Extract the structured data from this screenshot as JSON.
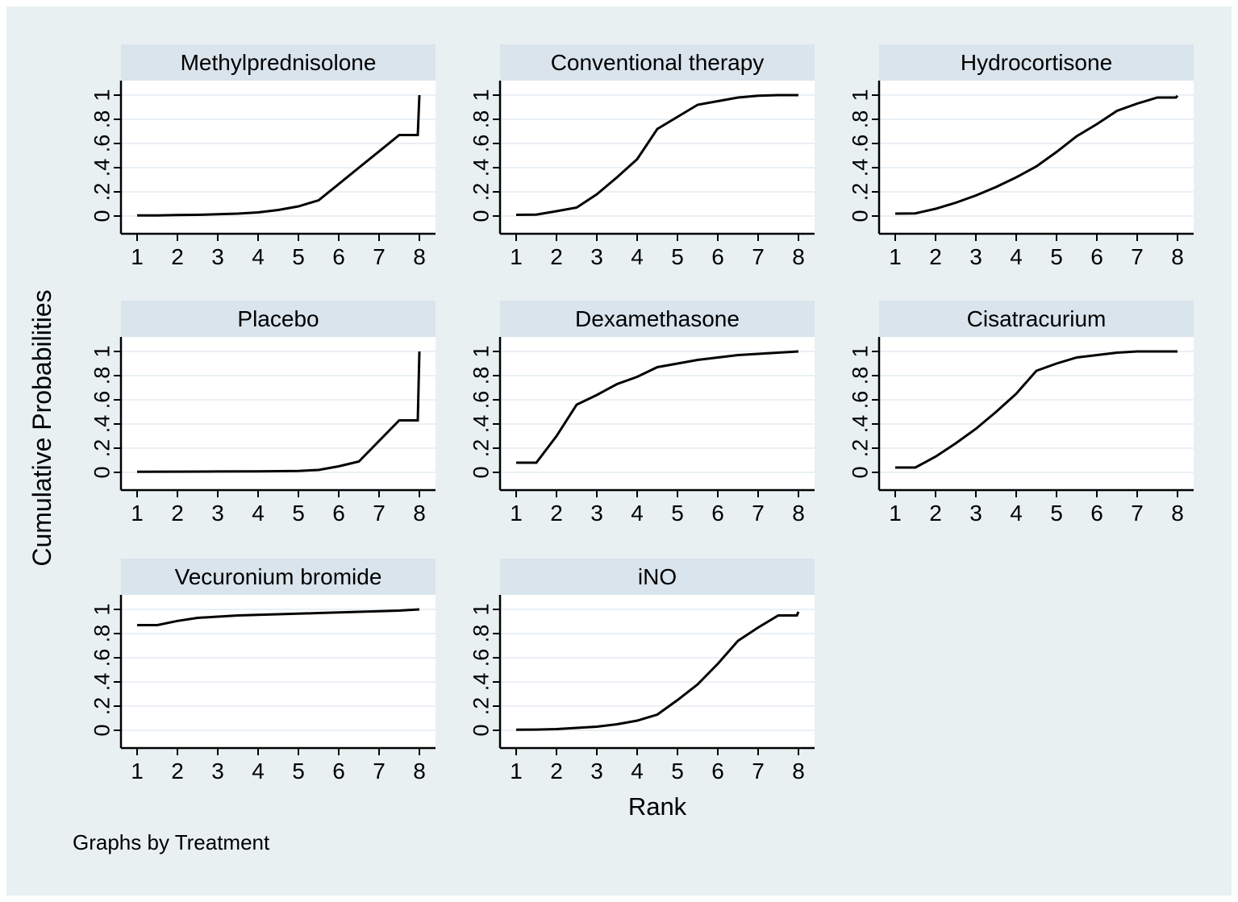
{
  "colors": {
    "page_border": "#ffffff",
    "figure_background": "#e8f0f2",
    "panel_strip": "#d9e4ec",
    "plot_background": "#ffffff",
    "gridline": "#e3ecf2",
    "axis": "#000000",
    "series_line": "#000000"
  },
  "chart_data": {
    "type": "line",
    "layout": "small-multiples, 3 columns, graphs by treatment",
    "by_note": "Graphs by Treatment",
    "x": {
      "label": "Rank",
      "ticks": [
        "1",
        "2",
        "3",
        "4",
        "5",
        "6",
        "7",
        "8"
      ],
      "tick_values": [
        1,
        2,
        3,
        4,
        5,
        6,
        7,
        8
      ],
      "range": [
        1,
        8
      ]
    },
    "y": {
      "label": "Cumulative Probabilities",
      "ticks": [
        "0",
        ".2",
        ".4",
        ".6",
        ".8",
        "1"
      ],
      "tick_values": [
        0,
        0.2,
        0.4,
        0.6,
        0.8,
        1
      ],
      "range": [
        0,
        1
      ],
      "grid": true
    },
    "panels": [
      {
        "title": "Methylprednisolone",
        "points": [
          [
            1,
            0.005
          ],
          [
            1.5,
            0.005
          ],
          [
            2,
            0.008
          ],
          [
            2.5,
            0.01
          ],
          [
            3,
            0.015
          ],
          [
            3.5,
            0.02
          ],
          [
            4,
            0.03
          ],
          [
            4.5,
            0.05
          ],
          [
            5,
            0.08
          ],
          [
            5.5,
            0.13
          ],
          [
            6,
            0.265
          ],
          [
            6.5,
            0.4
          ],
          [
            7,
            0.535
          ],
          [
            7.5,
            0.67
          ],
          [
            7.96,
            0.67
          ],
          [
            8,
            1.0
          ]
        ]
      },
      {
        "title": "Conventional therapy",
        "points": [
          [
            1,
            0.01
          ],
          [
            1.5,
            0.012
          ],
          [
            2,
            0.04
          ],
          [
            2.5,
            0.07
          ],
          [
            3,
            0.18
          ],
          [
            3.5,
            0.32
          ],
          [
            4,
            0.47
          ],
          [
            4.5,
            0.72
          ],
          [
            5,
            0.82
          ],
          [
            5.5,
            0.92
          ],
          [
            6,
            0.95
          ],
          [
            6.5,
            0.98
          ],
          [
            7,
            0.995
          ],
          [
            7.5,
            1.0
          ],
          [
            8,
            1.0
          ]
        ]
      },
      {
        "title": "Hydrocortisone",
        "points": [
          [
            1,
            0.02
          ],
          [
            1.5,
            0.022
          ],
          [
            2,
            0.06
          ],
          [
            2.5,
            0.11
          ],
          [
            3,
            0.17
          ],
          [
            3.5,
            0.24
          ],
          [
            4,
            0.32
          ],
          [
            4.5,
            0.41
          ],
          [
            5,
            0.53
          ],
          [
            5.5,
            0.66
          ],
          [
            6,
            0.76
          ],
          [
            6.5,
            0.87
          ],
          [
            7,
            0.93
          ],
          [
            7.5,
            0.98
          ],
          [
            7.96,
            0.98
          ],
          [
            8,
            0.995
          ]
        ]
      },
      {
        "title": "Placebo",
        "points": [
          [
            1,
            0.005
          ],
          [
            2,
            0.006
          ],
          [
            3,
            0.007
          ],
          [
            4,
            0.008
          ],
          [
            5,
            0.012
          ],
          [
            5.5,
            0.02
          ],
          [
            6,
            0.05
          ],
          [
            6.5,
            0.09
          ],
          [
            7,
            0.26
          ],
          [
            7.5,
            0.43
          ],
          [
            7.96,
            0.43
          ],
          [
            8,
            1.0
          ]
        ]
      },
      {
        "title": "Dexamethasone",
        "points": [
          [
            1,
            0.08
          ],
          [
            1.5,
            0.08
          ],
          [
            2,
            0.3
          ],
          [
            2.5,
            0.56
          ],
          [
            3,
            0.64
          ],
          [
            3.5,
            0.73
          ],
          [
            4,
            0.79
          ],
          [
            4.5,
            0.87
          ],
          [
            5,
            0.9
          ],
          [
            5.5,
            0.93
          ],
          [
            6,
            0.95
          ],
          [
            6.5,
            0.97
          ],
          [
            7,
            0.98
          ],
          [
            7.5,
            0.99
          ],
          [
            8,
            1.0
          ]
        ]
      },
      {
        "title": "Cisatracurium",
        "points": [
          [
            1,
            0.04
          ],
          [
            1.5,
            0.04
          ],
          [
            2,
            0.13
          ],
          [
            2.5,
            0.24
          ],
          [
            3,
            0.36
          ],
          [
            3.5,
            0.5
          ],
          [
            4,
            0.65
          ],
          [
            4.5,
            0.84
          ],
          [
            5,
            0.9
          ],
          [
            5.5,
            0.95
          ],
          [
            6,
            0.97
          ],
          [
            6.5,
            0.99
          ],
          [
            7,
            1.0
          ],
          [
            8,
            1.0
          ]
        ]
      },
      {
        "title": "Vecuronium bromide",
        "points": [
          [
            1,
            0.87
          ],
          [
            1.5,
            0.87
          ],
          [
            2,
            0.905
          ],
          [
            2.5,
            0.93
          ],
          [
            3,
            0.94
          ],
          [
            3.5,
            0.95
          ],
          [
            4,
            0.955
          ],
          [
            4.5,
            0.96
          ],
          [
            5,
            0.965
          ],
          [
            5.5,
            0.97
          ],
          [
            6,
            0.975
          ],
          [
            6.5,
            0.98
          ],
          [
            7,
            0.985
          ],
          [
            7.5,
            0.99
          ],
          [
            8,
            1.0
          ]
        ]
      },
      {
        "title": "iNO",
        "points": [
          [
            1,
            0.005
          ],
          [
            1.5,
            0.006
          ],
          [
            2,
            0.01
          ],
          [
            2.5,
            0.02
          ],
          [
            3,
            0.03
          ],
          [
            3.5,
            0.05
          ],
          [
            4,
            0.08
          ],
          [
            4.5,
            0.13
          ],
          [
            5,
            0.25
          ],
          [
            5.5,
            0.38
          ],
          [
            6,
            0.55
          ],
          [
            6.5,
            0.74
          ],
          [
            7,
            0.85
          ],
          [
            7.5,
            0.95
          ],
          [
            7.96,
            0.95
          ],
          [
            8,
            0.98
          ]
        ]
      }
    ]
  }
}
